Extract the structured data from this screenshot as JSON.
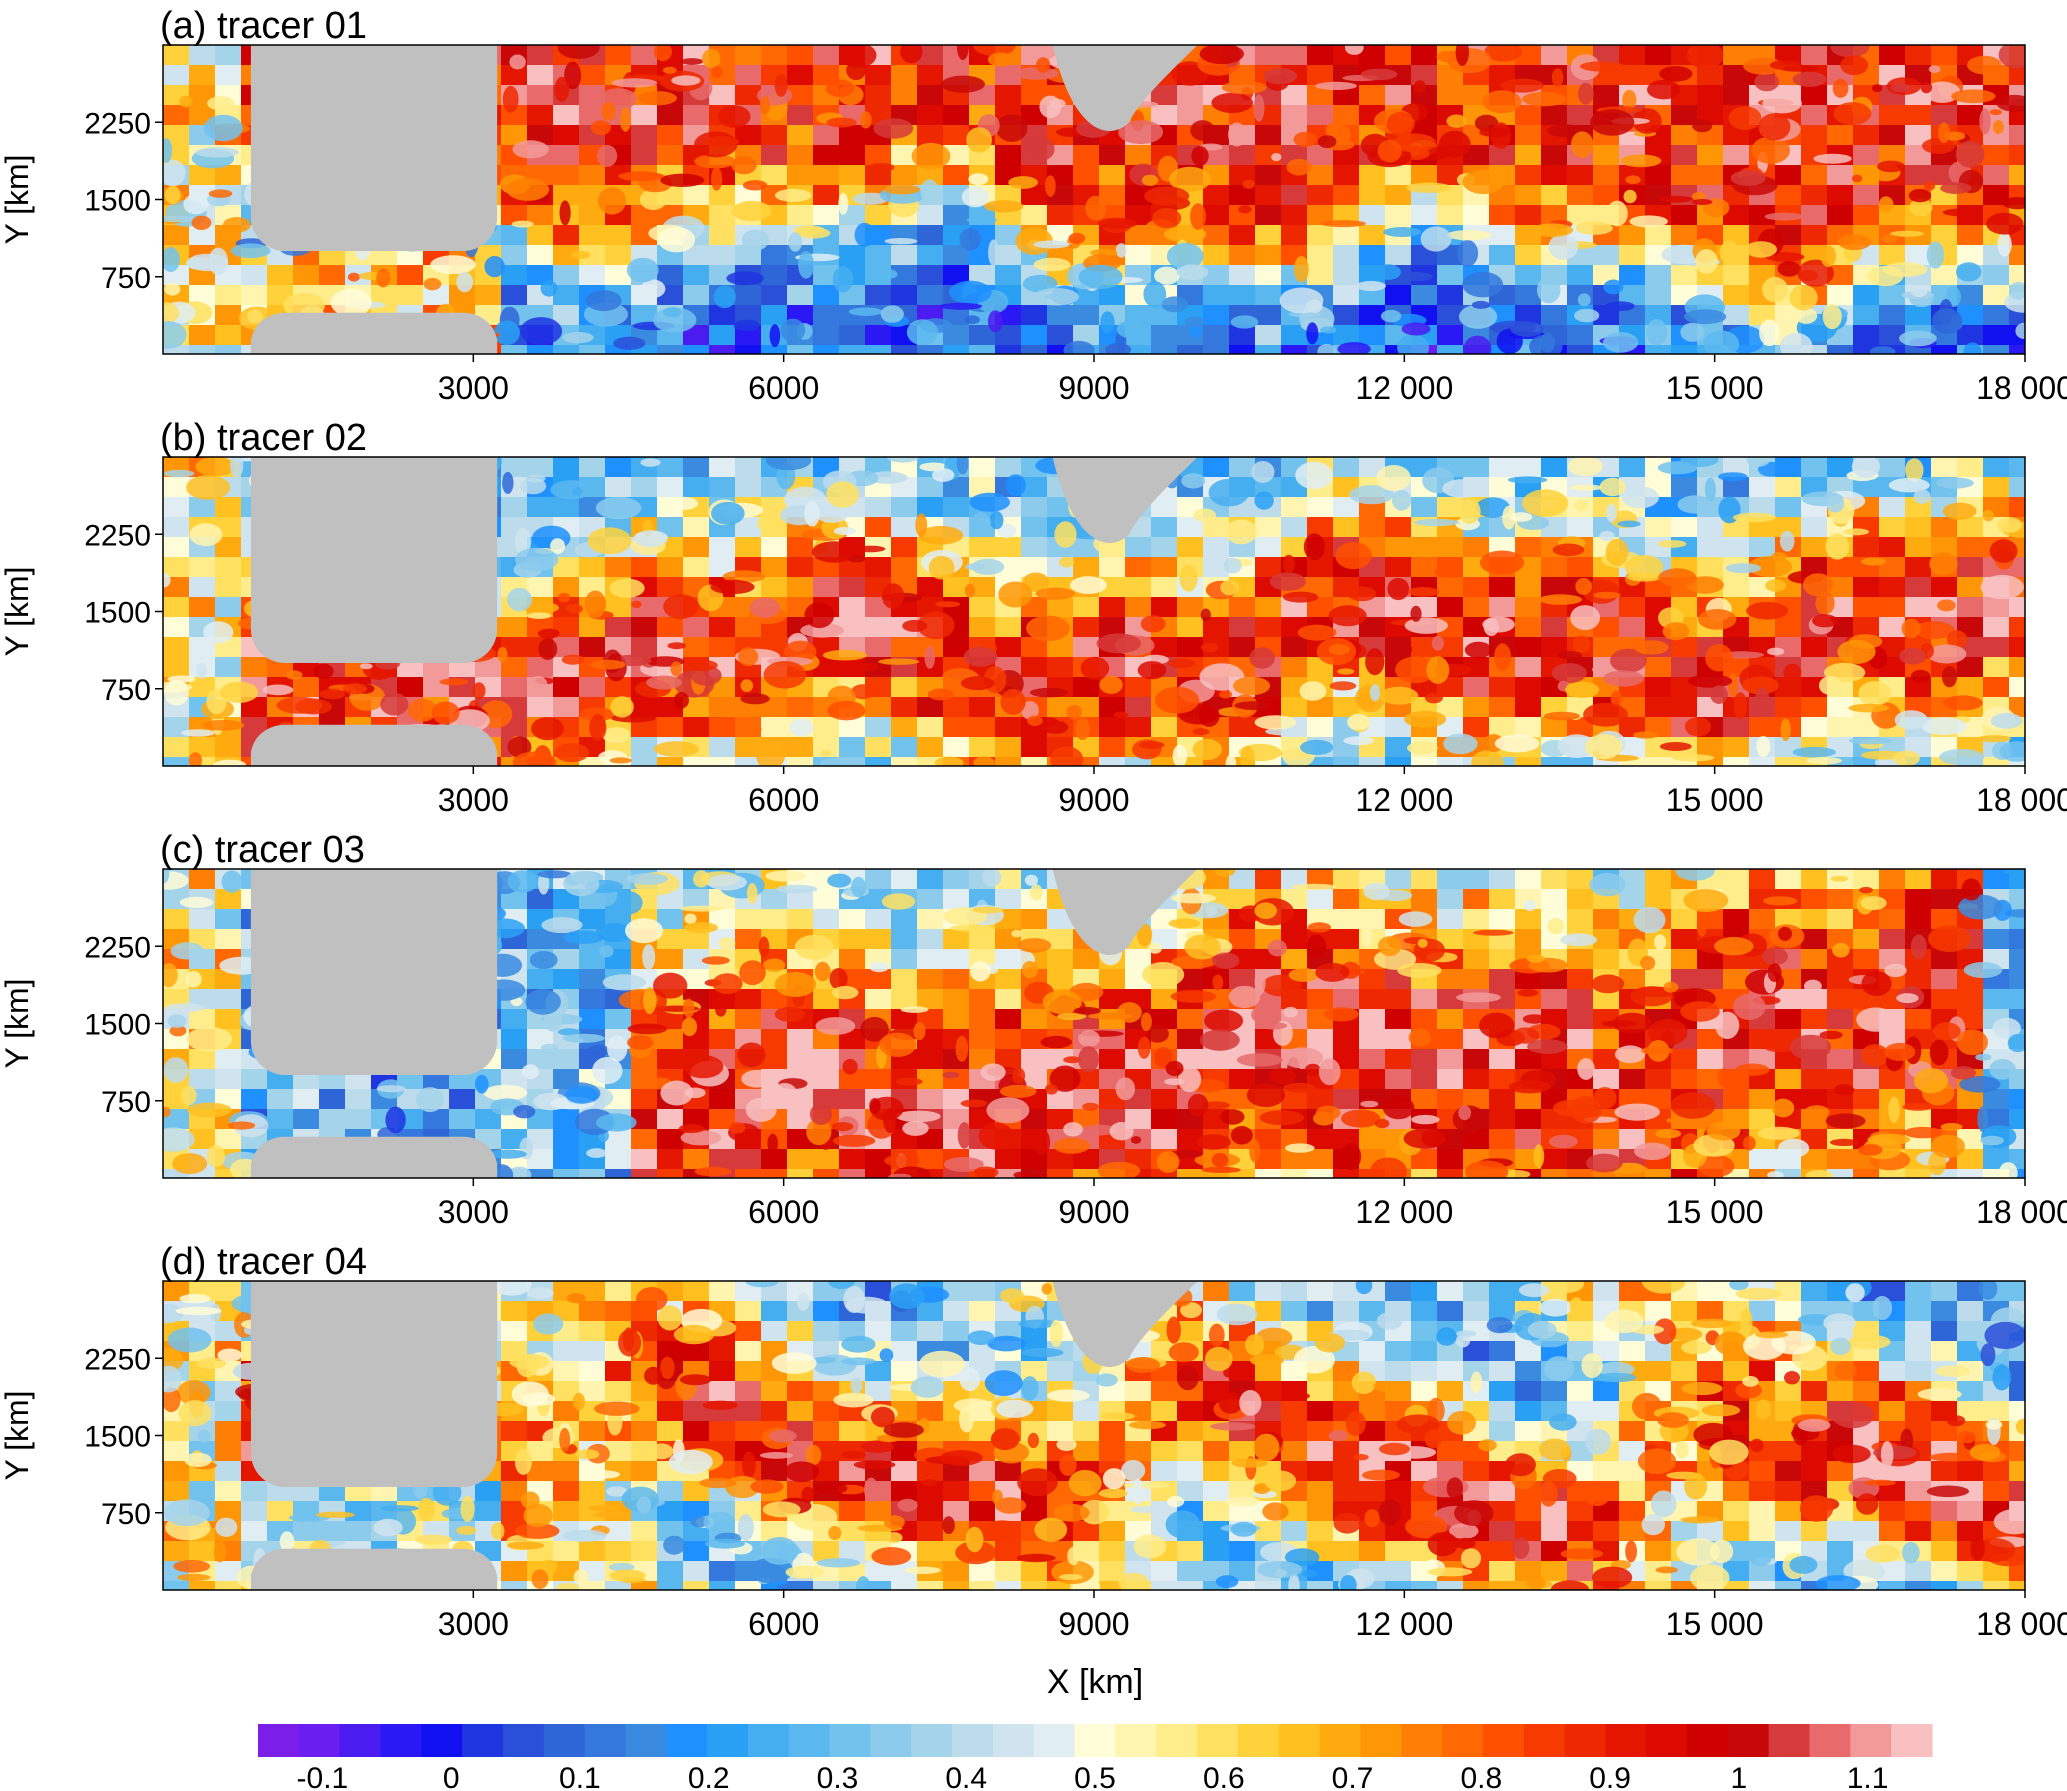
{
  "figure": {
    "xlabel": "X [km]",
    "ylabel": "Y [km]"
  },
  "chart_data": [
    {
      "type": "heatmap",
      "title": "(a) tracer 01",
      "xlabel": "",
      "ylabel": "Y [km]",
      "xlim": [
        0,
        18000
      ],
      "ylim": [
        0,
        3000
      ],
      "xticks": [
        "3000",
        "6000",
        "9000",
        "12 000",
        "15 000",
        "18 000"
      ],
      "yticks": [
        "750",
        "1500",
        "2250"
      ],
      "pattern": "warm-north",
      "band_start_km": 3200,
      "band_end_km": 17600,
      "band_y_west": 1350,
      "band_y_east": 800,
      "band_width": 700,
      "basin_value": 0.65
    },
    {
      "type": "heatmap",
      "title": "(b) tracer 02",
      "xlabel": "",
      "ylabel": "Y [km]",
      "xlim": [
        0,
        18000
      ],
      "ylim": [
        0,
        3000
      ],
      "xticks": [
        "3000",
        "6000",
        "9000",
        "12 000",
        "15 000",
        "18 000"
      ],
      "yticks": [
        "750",
        "1500",
        "2250"
      ],
      "pattern": "warm-core",
      "band_start_km": 3200,
      "band_end_km": 18000,
      "band_y_west": 1000,
      "band_y_east": 1300,
      "band_width": 1200,
      "basin_value": 0.95
    },
    {
      "type": "heatmap",
      "title": "(c) tracer 03",
      "xlabel": "",
      "ylabel": "Y [km]",
      "xlim": [
        0,
        18000
      ],
      "ylim": [
        0,
        3000
      ],
      "xticks": [
        "3000",
        "6000",
        "9000",
        "12 000",
        "15 000",
        "18 000"
      ],
      "yticks": [
        "750",
        "1500",
        "2250"
      ],
      "pattern": "warm-wedge",
      "band_start_km": 4500,
      "band_end_km": 17500,
      "band_y_west": 500,
      "band_y_east": 1500,
      "band_width": 1600,
      "basin_value": 0.25
    },
    {
      "type": "heatmap",
      "title": "(d) tracer 04",
      "xlabel": "X [km]",
      "ylabel": "Y [km]",
      "xlim": [
        0,
        18000
      ],
      "ylim": [
        0,
        3000
      ],
      "xticks": [
        "3000",
        "6000",
        "9000",
        "12 000",
        "15 000",
        "18 000"
      ],
      "yticks": [
        "750",
        "1500",
        "2250"
      ],
      "pattern": "mixed",
      "band_start_km": 3500,
      "band_end_km": 17000,
      "band_y_west": 1400,
      "band_y_east": 1000,
      "band_width": 900,
      "basin_value": 0.45
    }
  ],
  "colorbar": {
    "range": [
      -0.15,
      1.15
    ],
    "ticks": [
      "-0.1",
      "0",
      "0.1",
      "0.2",
      "0.3",
      "0.4",
      "0.5",
      "0.6",
      "0.7",
      "0.8",
      "0.9",
      "1",
      "1.1"
    ],
    "tick_values": [
      -0.1,
      0,
      0.1,
      0.2,
      0.3,
      0.4,
      0.5,
      0.6,
      0.7,
      0.8,
      0.9,
      1,
      1.1
    ],
    "colors": [
      "#7b1fe8",
      "#6a1ef0",
      "#4a1cf0",
      "#2a18f5",
      "#1010f0",
      "#1f35e0",
      "#2a4fd8",
      "#2e66d8",
      "#3478dd",
      "#3a8be0",
      "#1e90ff",
      "#2aa0f5",
      "#45aef0",
      "#5ab8ef",
      "#72c2ee",
      "#8ccbec",
      "#a4d4ea",
      "#bcdcec",
      "#d0e4ef",
      "#e0eef4",
      "#fffcd8",
      "#fff5b0",
      "#ffec8a",
      "#ffe060",
      "#ffd23c",
      "#ffc020",
      "#ffab10",
      "#ff9606",
      "#ff7f04",
      "#ff6802",
      "#ff5000",
      "#f73a00",
      "#ee2800",
      "#e51600",
      "#dc0a00",
      "#cf0000",
      "#c80808",
      "#d63a3a",
      "#e86a6a",
      "#f29a9a",
      "#f8c0c0"
    ]
  },
  "land_color": "#c0c0c0"
}
